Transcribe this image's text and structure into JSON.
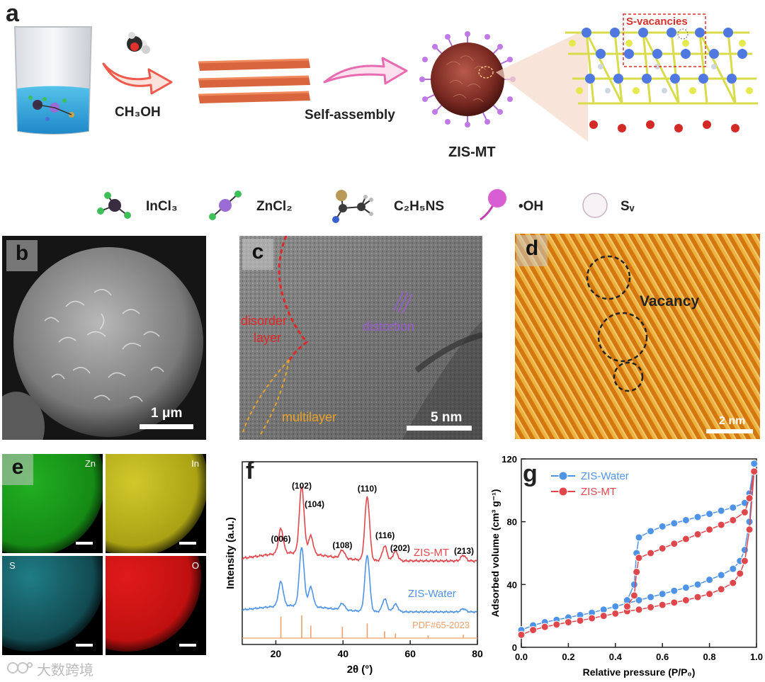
{
  "panel_a": {
    "letter": "a",
    "step1_label": "CH₃OH",
    "step2_label": "Self-assembly",
    "product_label": "ZIS-MT",
    "vacancy_label": "S-vacancies"
  },
  "legend": {
    "items": [
      {
        "label": "InCl₃"
      },
      {
        "label": "ZnCl₂"
      },
      {
        "label": "C₂H₅NS"
      },
      {
        "label": "•OH"
      },
      {
        "label": "Sᵥ"
      }
    ]
  },
  "panel_b": {
    "letter": "b",
    "scalebar": "1 μm"
  },
  "panel_c": {
    "letter": "c",
    "disorder_label_1": "disorder",
    "disorder_label_2": "layer",
    "distortion_label": "distortion",
    "multilayer_label": "multilayer",
    "scalebar": "5 nm"
  },
  "panel_d": {
    "letter": "d",
    "vacancy_label": "Vacancy",
    "scalebar": "2 nm"
  },
  "panel_e": {
    "letter": "e",
    "maps": [
      {
        "element": "Zn",
        "color": "#1fa01f"
      },
      {
        "element": "In",
        "color": "#c8c21a"
      },
      {
        "element": "S",
        "color": "#2aa7b3"
      },
      {
        "element": "O",
        "color": "#d81a1a"
      }
    ]
  },
  "watermark": "大数跨境",
  "chart_data": [
    {
      "id": "f",
      "type": "line",
      "letter": "f",
      "xlabel": "2θ (°)",
      "ylabel": "Intensity (a.u.)",
      "xlim": [
        10,
        80
      ],
      "xticks": [
        20,
        40,
        60,
        80
      ],
      "series": [
        {
          "name": "ZIS-MT",
          "color": "#e0474c",
          "peaks": [
            [
              21.5,
              0.3
            ],
            [
              27.7,
              0.82
            ],
            [
              30.4,
              0.22
            ],
            [
              39.8,
              0.1
            ],
            [
              47.2,
              0.78
            ],
            [
              52.4,
              0.18
            ],
            [
              55.6,
              0.12
            ],
            [
              75.8,
              0.07
            ]
          ]
        },
        {
          "name": "ZIS-Water",
          "color": "#4f93e8",
          "peaks": [
            [
              21.5,
              0.38
            ],
            [
              27.7,
              0.92
            ],
            [
              30.4,
              0.3
            ],
            [
              39.8,
              0.1
            ],
            [
              47.2,
              0.88
            ],
            [
              52.4,
              0.2
            ],
            [
              55.6,
              0.12
            ],
            [
              75.8,
              0.05
            ]
          ]
        },
        {
          "name": "PDF#65-2023",
          "color": "#f0a06a",
          "sticks": [
            [
              21.5,
              0.95
            ],
            [
              27.7,
              1.0
            ],
            [
              30.4,
              0.55
            ],
            [
              39.8,
              0.5
            ],
            [
              47.2,
              0.65
            ],
            [
              52.4,
              0.3
            ],
            [
              55.6,
              0.2
            ],
            [
              65.3,
              0.12
            ],
            [
              75.8,
              0.15
            ]
          ]
        }
      ],
      "annotations": [
        {
          "text": "(006)",
          "x": 21.5
        },
        {
          "text": "(102)",
          "x": 27.7
        },
        {
          "text": "(104)",
          "x": 31.5
        },
        {
          "text": "(108)",
          "x": 39.8
        },
        {
          "text": "(110)",
          "x": 47.2
        },
        {
          "text": "(116)",
          "x": 52.5
        },
        {
          "text": "(202)",
          "x": 57.0
        },
        {
          "text": "(213)",
          "x": 76.0
        }
      ]
    },
    {
      "id": "g",
      "type": "line",
      "letter": "g",
      "xlabel": "Relative pressure (P/P₀)",
      "ylabel": "Adsorbed volume (cm³ g⁻¹)",
      "xlim": [
        0.0,
        1.0
      ],
      "ylim": [
        0,
        120
      ],
      "xticks": [
        0.0,
        0.2,
        0.4,
        0.6,
        0.8,
        1.0
      ],
      "yticks": [
        0,
        40,
        80,
        120
      ],
      "series": [
        {
          "name": "ZIS-Water",
          "color": "#4f93e8",
          "adsorption": [
            [
              0.0,
              11
            ],
            [
              0.05,
              14
            ],
            [
              0.1,
              16
            ],
            [
              0.15,
              17.5
            ],
            [
              0.2,
              19
            ],
            [
              0.25,
              20.5
            ],
            [
              0.3,
              22
            ],
            [
              0.35,
              24
            ],
            [
              0.4,
              26
            ],
            [
              0.45,
              28
            ],
            [
              0.5,
              30
            ],
            [
              0.55,
              32
            ],
            [
              0.6,
              34
            ],
            [
              0.65,
              36
            ],
            [
              0.7,
              38
            ],
            [
              0.75,
              40
            ],
            [
              0.8,
              43
            ],
            [
              0.85,
              46
            ],
            [
              0.9,
              50
            ],
            [
              0.93,
              55
            ],
            [
              0.95,
              62
            ],
            [
              0.97,
              80
            ],
            [
              0.99,
              117
            ]
          ],
          "desorption": [
            [
              0.99,
              117
            ],
            [
              0.97,
              98
            ],
            [
              0.95,
              92
            ],
            [
              0.9,
              89
            ],
            [
              0.85,
              87
            ],
            [
              0.8,
              85
            ],
            [
              0.75,
              83
            ],
            [
              0.7,
              81
            ],
            [
              0.65,
              79
            ],
            [
              0.6,
              77
            ],
            [
              0.55,
              74
            ],
            [
              0.5,
              70
            ],
            [
              0.49,
              60
            ],
            [
              0.48,
              40
            ],
            [
              0.45,
              30
            ]
          ]
        },
        {
          "name": "ZIS-MT",
          "color": "#e0474c",
          "adsorption": [
            [
              0.0,
              8
            ],
            [
              0.05,
              11
            ],
            [
              0.1,
              13
            ],
            [
              0.15,
              14.5
            ],
            [
              0.2,
              16
            ],
            [
              0.25,
              17
            ],
            [
              0.3,
              18.5
            ],
            [
              0.35,
              20
            ],
            [
              0.4,
              21.5
            ],
            [
              0.45,
              23
            ],
            [
              0.5,
              24
            ],
            [
              0.55,
              25.5
            ],
            [
              0.6,
              27
            ],
            [
              0.65,
              28.5
            ],
            [
              0.7,
              30
            ],
            [
              0.75,
              32
            ],
            [
              0.8,
              34
            ],
            [
              0.85,
              37
            ],
            [
              0.9,
              41
            ],
            [
              0.93,
              47
            ],
            [
              0.95,
              55
            ],
            [
              0.97,
              75
            ],
            [
              0.99,
              112
            ]
          ],
          "desorption": [
            [
              0.99,
              112
            ],
            [
              0.97,
              95
            ],
            [
              0.95,
              86
            ],
            [
              0.9,
              81
            ],
            [
              0.85,
              78
            ],
            [
              0.8,
              75
            ],
            [
              0.75,
              72
            ],
            [
              0.7,
              69
            ],
            [
              0.65,
              66
            ],
            [
              0.6,
              63
            ],
            [
              0.55,
              60
            ],
            [
              0.5,
              57
            ],
            [
              0.49,
              48
            ],
            [
              0.48,
              33
            ],
            [
              0.45,
              26
            ]
          ]
        }
      ]
    }
  ]
}
